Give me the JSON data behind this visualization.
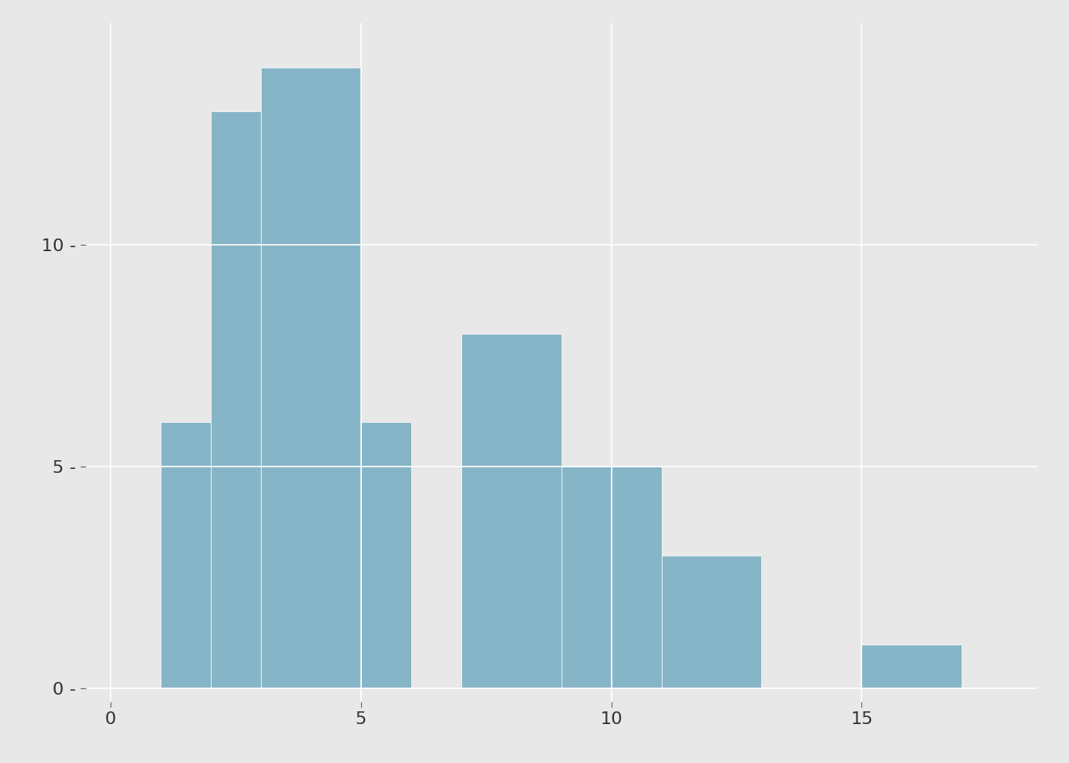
{
  "bar_color": "#87b5c8",
  "background_color": "#e8e8e8",
  "panel_color": "#e8e8e8",
  "grid_color": "#ffffff",
  "xlim": [
    -0.5,
    18.5
  ],
  "ylim": [
    -0.3,
    15.0
  ],
  "yticks": [
    0,
    5,
    10
  ],
  "xticks": [
    0,
    5,
    10,
    15
  ],
  "bin_edges": [
    1,
    2,
    3,
    5,
    6,
    7,
    9,
    11,
    13,
    15,
    17
  ],
  "bin_heights": [
    6,
    13,
    14,
    6,
    0,
    8,
    5,
    3,
    0,
    1
  ]
}
